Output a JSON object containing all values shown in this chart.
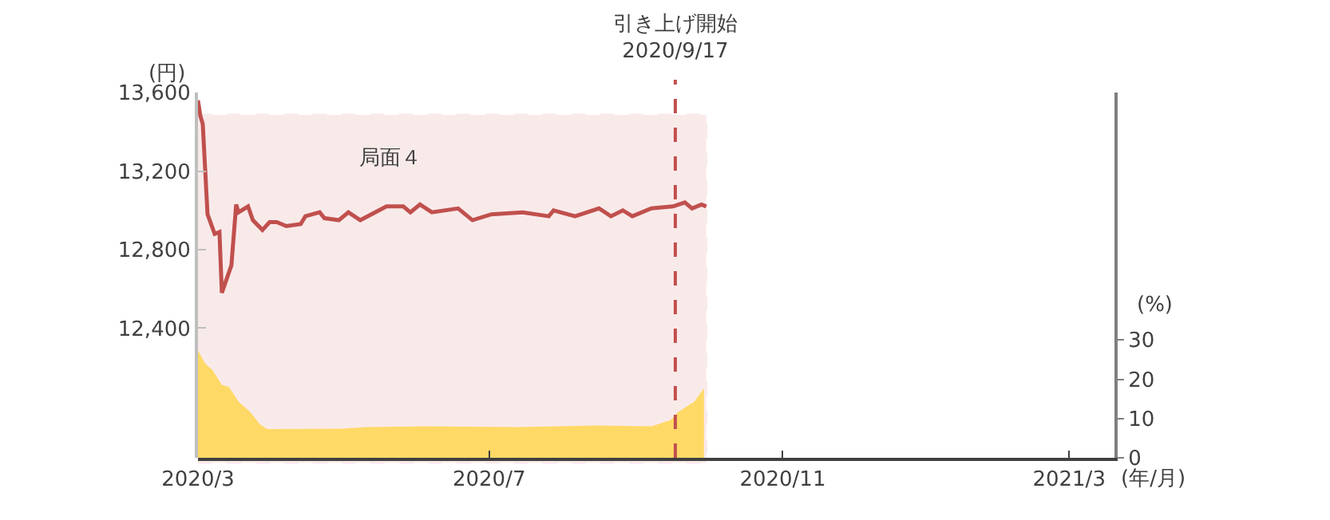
{
  "chart_data": {
    "type": "line",
    "xlabel": "(年/月)",
    "ylabel": "(円)",
    "y2label": "(%)",
    "xlim": [
      "2020-03-01",
      "2021-03-20"
    ],
    "xticks": [
      {
        "value": "2020-03-01",
        "label": "2020/3"
      },
      {
        "value": "2020-07-01",
        "label": "2020/7"
      },
      {
        "value": "2020-11-01",
        "label": "2020/11"
      },
      {
        "value": "2021-03-01",
        "label": "2021/3"
      }
    ],
    "ylim": [
      11740,
      13600
    ],
    "yticks": [
      {
        "value": 12400,
        "label": "12,400"
      },
      {
        "value": 12800,
        "label": "12,800"
      },
      {
        "value": 13200,
        "label": "13,200"
      },
      {
        "value": 13600,
        "label": "13,600"
      }
    ],
    "y2lim": [
      0,
      93
    ],
    "y2ticks": [
      0,
      10,
      20,
      30
    ],
    "grid": false,
    "series": [
      {
        "type": "area",
        "axis": "y2",
        "color": "#ffd966",
        "x": [
          "2020-03-01",
          "2020-03-04",
          "2020-03-07",
          "2020-03-11",
          "2020-03-14",
          "2020-03-18",
          "2020-03-23",
          "2020-03-27",
          "2020-03-30",
          "2020-04-30",
          "2020-05-11",
          "2020-06-03",
          "2020-07-13",
          "2020-08-16",
          "2020-09-07",
          "2020-09-15",
          "2020-09-18",
          "2020-09-25",
          "2020-09-29"
        ],
        "values": [
          27.3,
          24,
          22.4,
          18.6,
          18,
          14.3,
          11.6,
          8.5,
          7.3,
          7.4,
          7.8,
          8,
          7.8,
          8.2,
          8,
          9.6,
          11.6,
          14.3,
          17.7
        ]
      },
      {
        "axis": "y",
        "color": "#c0504d",
        "x": [
          "2020-03-01",
          "2020-03-02",
          "2020-03-03",
          "2020-03-05",
          "2020-03-08",
          "2020-03-10",
          "2020-03-11",
          "2020-03-15",
          "2020-03-17",
          "2020-03-18",
          "2020-03-22",
          "2020-03-24",
          "2020-03-28",
          "2020-03-31",
          "2020-04-03",
          "2020-04-07",
          "2020-04-13",
          "2020-04-15",
          "2020-04-21",
          "2020-04-23",
          "2020-04-29",
          "2020-05-03",
          "2020-05-08",
          "2020-05-19",
          "2020-05-26",
          "2020-05-29",
          "2020-06-02",
          "2020-06-07",
          "2020-06-18",
          "2020-06-24",
          "2020-07-02",
          "2020-07-15",
          "2020-07-26",
          "2020-07-28",
          "2020-08-06",
          "2020-08-16",
          "2020-08-21",
          "2020-08-26",
          "2020-08-30",
          "2020-09-07",
          "2020-09-16",
          "2020-09-21",
          "2020-09-24",
          "2020-09-28",
          "2020-09-30"
        ],
        "values": [
          13560,
          13480,
          13440,
          12980,
          12880,
          12890,
          12580,
          12720,
          13030,
          12990,
          13020,
          12950,
          12900,
          12940,
          12940,
          12920,
          12930,
          12970,
          12990,
          12960,
          12950,
          12990,
          12950,
          13020,
          13020,
          12990,
          13030,
          12990,
          13010,
          12950,
          12980,
          12990,
          12970,
          13000,
          12970,
          13010,
          12970,
          13000,
          12970,
          13010,
          13020,
          13040,
          13010,
          13030,
          13020
        ]
      }
    ],
    "ref_lines": [
      {
        "axis": "x",
        "value": "2020-09-17",
        "label": "引き上げ開始\n2020/9/17",
        "color": "#c0504d",
        "line_style": "dashed"
      }
    ],
    "bands": [
      {
        "axis": "x",
        "from": "2020-03-01",
        "to": "2020-09-30",
        "label": "局面４",
        "color": "#e6a5a5"
      }
    ]
  }
}
